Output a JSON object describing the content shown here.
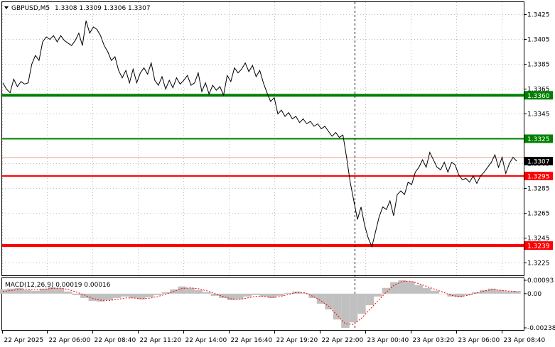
{
  "header": {
    "symbol": "GBPUSD,M5",
    "ohlc": "1.3308 1.3309 1.3306 1.3307"
  },
  "macd": {
    "label": "MACD(12,26,9) 0.00019 0.00016",
    "ticks": [
      "0.00093",
      "0.00",
      "-0.00238"
    ]
  },
  "colors": {
    "green": "#008000",
    "red": "#ff0000",
    "price_line": "#e0a080",
    "current_tag": "#000000",
    "histogram": "#c0c0c0",
    "signal": "#ff0000",
    "grid": "#c0c0c0"
  },
  "chart_data": {
    "type": "line",
    "instrument": "GBPUSD",
    "timeframe": "M5",
    "ylim": [
      1.3215,
      1.3435
    ],
    "y_ticks": [
      "1.3425",
      "1.3405",
      "1.3385",
      "1.3365",
      "1.3345",
      "1.3325",
      "1.3305",
      "1.3285",
      "1.3265",
      "1.3245",
      "1.3225"
    ],
    "x_ticks": [
      "22 Apr 2025",
      "22 Apr 06:00",
      "22 Apr 08:40",
      "22 Apr 11:20",
      "22 Apr 14:00",
      "22 Apr 16:40",
      "22 Apr 19:20",
      "22 Apr 22:00",
      "23 Apr 00:40",
      "23 Apr 03:20",
      "23 Apr 06:00",
      "23 Apr 08:40"
    ],
    "grid": true,
    "levels": [
      {
        "value": 1.336,
        "label": "1.3360",
        "color": "green",
        "thick": true
      },
      {
        "value": 1.3325,
        "label": "1.3325",
        "color": "green",
        "thick": false
      },
      {
        "value": 1.3295,
        "label": "1.3295",
        "color": "red",
        "thick": false
      },
      {
        "value": 1.3239,
        "label": "1.3239",
        "color": "red",
        "thick": true
      }
    ],
    "current_price": {
      "value": 1.3307,
      "label": "1.3307"
    },
    "day_separator": "23 Apr 00:00",
    "series": [
      {
        "values": [
          1.337,
          1.3365,
          1.3362,
          1.3373,
          1.3367,
          1.3371,
          1.3369,
          1.337,
          1.3385,
          1.3392,
          1.3388,
          1.3403,
          1.3407,
          1.3405,
          1.3408,
          1.3403,
          1.3408,
          1.3404,
          1.3402,
          1.34,
          1.3404,
          1.341,
          1.34,
          1.342,
          1.341,
          1.3415,
          1.3413,
          1.3408,
          1.34,
          1.3395,
          1.3388,
          1.3391,
          1.338,
          1.3374,
          1.338,
          1.337,
          1.3381,
          1.337,
          1.3378,
          1.3382,
          1.3377,
          1.3386,
          1.3372,
          1.3368,
          1.3375,
          1.3365,
          1.3372,
          1.3366,
          1.3374,
          1.3369,
          1.3372,
          1.3376,
          1.3368,
          1.337,
          1.3378,
          1.3363,
          1.337,
          1.3361,
          1.3368,
          1.3364,
          1.3367,
          1.336,
          1.3376,
          1.3371,
          1.3382,
          1.3378,
          1.3381,
          1.3386,
          1.3379,
          1.3384,
          1.3375,
          1.338,
          1.337,
          1.3362,
          1.3355,
          1.3358,
          1.3345,
          1.3348,
          1.3343,
          1.3346,
          1.3341,
          1.3343,
          1.3338,
          1.3341,
          1.3337,
          1.3339,
          1.3335,
          1.3337,
          1.3333,
          1.3335,
          1.3331,
          1.3327,
          1.333,
          1.3326,
          1.3328,
          1.331,
          1.329,
          1.3275,
          1.326,
          1.327,
          1.3255,
          1.3245,
          1.3238,
          1.325,
          1.3262,
          1.327,
          1.3268,
          1.3275,
          1.3263,
          1.328,
          1.3283,
          1.328,
          1.329,
          1.3288,
          1.3298,
          1.3302,
          1.3308,
          1.3302,
          1.3314,
          1.3308,
          1.3302,
          1.33,
          1.3306,
          1.3298,
          1.3306,
          1.3304,
          1.3296,
          1.3292,
          1.3293,
          1.329,
          1.3295,
          1.3289,
          1.3295,
          1.3298,
          1.3302,
          1.3306,
          1.3312,
          1.3302,
          1.331,
          1.3297,
          1.3305,
          1.331,
          1.3307
        ]
      }
    ],
    "macd_histogram": [
      0.0003,
      0.00035,
      0.0004,
      0.00025,
      0.0002,
      0.00035,
      0.00045,
      0.0004,
      0.00015,
      -0.0001,
      -0.0003,
      -0.0005,
      -0.00055,
      -0.00045,
      -0.0003,
      -0.0002,
      -0.0003,
      -0.0004,
      -0.00025,
      -0.0001,
      0.0001,
      0.0003,
      0.0005,
      0.0004,
      0.00025,
      0.0001,
      -0.00015,
      -0.0003,
      -0.00045,
      -0.0004,
      -0.0002,
      -0.0001,
      -0.0002,
      -0.0003,
      -0.00015,
      5e-05,
      0.00015,
      5e-05,
      -0.0003,
      -0.0007,
      -0.0011,
      -0.0018,
      -0.00238,
      -0.002,
      -0.0014,
      -0.0008,
      -0.0002,
      0.0004,
      0.0008,
      0.00093,
      0.00085,
      0.0006,
      0.0004,
      0.0002,
      0.0,
      -0.0002,
      -0.00025,
      -0.0001,
      0.0001,
      0.00025,
      0.00035,
      0.00025,
      0.00015,
      0.00019
    ],
    "macd_signal": [
      0.00015,
      0.00022,
      0.0003,
      0.00032,
      0.00028,
      0.0003,
      0.00036,
      0.00038,
      0.0003,
      0.00012,
      -0.0001,
      -0.00032,
      -0.00046,
      -0.00048,
      -0.0004,
      -0.0003,
      -0.0003,
      -0.00036,
      -0.00032,
      -0.0002,
      -4e-05,
      0.00016,
      0.00036,
      0.0004,
      0.00034,
      0.0002,
      0.0,
      -0.0002,
      -0.00036,
      -0.0004,
      -0.0003,
      -0.00018,
      -0.0002,
      -0.00026,
      -0.0002,
      -6e-05,
      8e-05,
      6e-05,
      -0.00018,
      -0.0005,
      -0.0009,
      -0.0015,
      -0.0021,
      -0.00215,
      -0.0017,
      -0.0011,
      -0.0005,
      0.0001,
      0.0006,
      0.00085,
      0.00087,
      0.0007,
      0.0005,
      0.0003,
      0.0001,
      -0.00012,
      -0.0002,
      -0.00012,
      4e-05,
      0.00018,
      0.00028,
      0.00024,
      0.00018,
      0.00016
    ]
  }
}
